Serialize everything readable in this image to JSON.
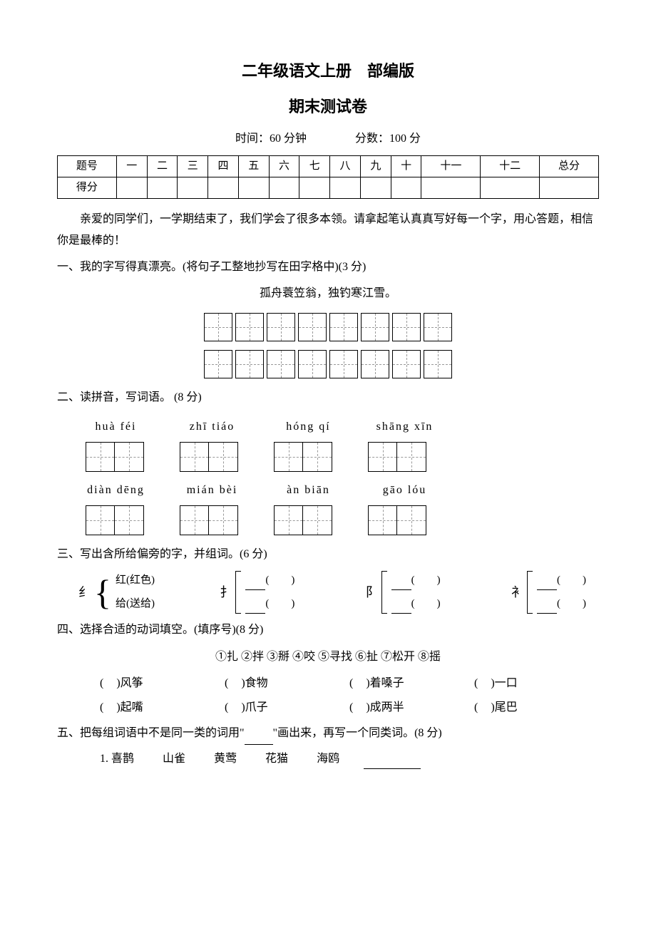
{
  "header": {
    "title_line1": "二年级语文上册　部编版",
    "title_line2": "期末测试卷",
    "time_label": "时间：60 分钟",
    "score_label": "分数：100 分"
  },
  "score_table": {
    "row_headers": [
      "题号",
      "得分"
    ],
    "columns": [
      "一",
      "二",
      "三",
      "四",
      "五",
      "六",
      "七",
      "八",
      "九",
      "十",
      "十一",
      "十二",
      "总分"
    ]
  },
  "intro": "亲爱的同学们，一学期结束了，我们学会了很多本领。请拿起笔认真真写好每一个字，用心答题，相信你是最棒的！",
  "q1": {
    "head": "一、我的字写得真漂亮。(将句子工整地抄写在田字格中)(3 分)",
    "poem": "孤舟蓑笠翁，独钓寒江雪。",
    "cells_per_row": 8,
    "rows": 2
  },
  "q2": {
    "head": "二、读拼音，写词语。 (8 分)",
    "row1": [
      "huà  féi",
      "zhī  tiáo",
      "hóng  qí",
      "shāng xīn"
    ],
    "row2": [
      "diàn dēng",
      "mián  bèi",
      "àn  biān",
      "gāo  lóu"
    ]
  },
  "q3": {
    "head": "三、写出含所给偏旁的字，并组词。(6 分)",
    "groups": [
      {
        "radical": "纟",
        "ex1": "红(红色)",
        "ex2": "给(送给)",
        "prefilled": true
      },
      {
        "radical": "扌",
        "prefilled": false
      },
      {
        "radical": "阝",
        "prefilled": false
      },
      {
        "radical": "衤",
        "prefilled": false
      }
    ]
  },
  "q4": {
    "head": "四、选择合适的动词填空。(填序号)(8 分)",
    "options": "①扎 ②拌 ③掰 ④咬 ⑤寻找 ⑥扯 ⑦松开 ⑧摇",
    "row1": [
      "风筝",
      "食物",
      "着嗓子",
      "一口"
    ],
    "row2": [
      "起嘴",
      "爪子",
      "成两半",
      "尾巴"
    ]
  },
  "q5": {
    "head_pre": "五、把每组词语中不是同一类的词用\"",
    "head_post": "\"画出来，再写一个同类词。(8 分)",
    "item1_num": "1.",
    "item1_words": [
      "喜鹊",
      "山雀",
      "黄莺",
      "花猫",
      "海鸥"
    ]
  },
  "colors": {
    "text": "#000000",
    "background": "#ffffff",
    "grid_dash": "#999999"
  }
}
